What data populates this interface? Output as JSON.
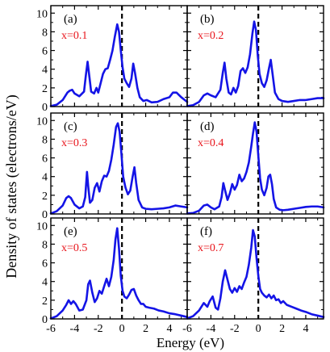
{
  "colors": {
    "curve": "#1414e6",
    "ylabel": "#7a1a55",
    "panel_label": "#e8141b",
    "fermi": "#000000"
  },
  "chart_data": {
    "type": "line",
    "xlabel": "Energy (eV)",
    "ylabel": "Density of states (electrons/eV)",
    "xlim": [
      -6,
      5.5
    ],
    "ylim": [
      0,
      10.8
    ],
    "x_ticks": [
      -6,
      -4,
      -2,
      0,
      2,
      4
    ],
    "x_tick_labels_left": [
      "-6",
      "-4",
      "-2",
      "0",
      "2",
      "4"
    ],
    "x_tick_labels_right": [
      "-6",
      "-4",
      "-2",
      "0",
      "2",
      "4"
    ],
    "y_ticks": [
      0,
      2,
      4,
      6,
      8,
      10
    ],
    "y_tick_labels": [
      "0",
      "2",
      "4",
      "6",
      "8",
      "10"
    ],
    "fermi_level": 0,
    "panels": [
      {
        "letter": "(a)",
        "label": "x=0.1",
        "x": [
          -6,
          -5.5,
          -5,
          -4.6,
          -4.4,
          -4.2,
          -4,
          -3.6,
          -3.2,
          -3.05,
          -2.9,
          -2.75,
          -2.6,
          -2.35,
          -2.15,
          -2,
          -1.8,
          -1.6,
          -1.4,
          -1.2,
          -1,
          -0.8,
          -0.6,
          -0.4,
          -0.25,
          -0.1,
          0.05,
          0.2,
          0.4,
          0.6,
          0.8,
          0.95,
          1.1,
          1.3,
          1.5,
          1.8,
          2.1,
          2.5,
          3,
          3.5,
          4,
          4.3,
          4.6,
          5,
          5.5
        ],
        "y": [
          0.05,
          0.2,
          0.7,
          1.5,
          1.7,
          1.8,
          1.4,
          1.1,
          1.6,
          3.3,
          4.8,
          3.2,
          1.6,
          1.4,
          2,
          1.5,
          2.5,
          3.5,
          4,
          4.1,
          5,
          6,
          7.5,
          8.8,
          8,
          6,
          4.2,
          3,
          2.5,
          2.1,
          3,
          4.6,
          3.6,
          2,
          1,
          0.6,
          0.7,
          0.45,
          0.5,
          0.8,
          1,
          1.5,
          1.5,
          1,
          0.5
        ]
      },
      {
        "letter": "(b)",
        "label": "x=0.2",
        "x": [
          -6,
          -5.5,
          -5,
          -4.6,
          -4.3,
          -4,
          -3.6,
          -3.2,
          -3,
          -2.85,
          -2.7,
          -2.5,
          -2.3,
          -2.1,
          -1.9,
          -1.7,
          -1.5,
          -1.3,
          -1.1,
          -0.9,
          -0.7,
          -0.5,
          -0.35,
          -0.2,
          -0.05,
          0.1,
          0.3,
          0.5,
          0.7,
          0.9,
          1.05,
          1.2,
          1.4,
          1.7,
          2,
          2.5,
          3,
          3.5,
          4,
          4.5,
          5,
          5.5
        ],
        "y": [
          0.05,
          0.15,
          0.5,
          1.2,
          1.4,
          1.2,
          1,
          1.8,
          3.6,
          4.7,
          3,
          1.5,
          1.3,
          2,
          1.5,
          2.2,
          3.8,
          4.1,
          3.6,
          4.2,
          5.6,
          7.8,
          9.1,
          8.2,
          5.5,
          3.5,
          2.5,
          2.1,
          2.8,
          4.1,
          5,
          3.5,
          1.5,
          0.8,
          0.6,
          0.5,
          0.6,
          0.7,
          0.7,
          0.8,
          0.9,
          0.9
        ]
      },
      {
        "letter": "(c)",
        "label": "x=0.3",
        "x": [
          -6,
          -5.5,
          -5,
          -4.7,
          -4.5,
          -4.3,
          -4,
          -3.6,
          -3.3,
          -3.1,
          -2.95,
          -2.85,
          -2.7,
          -2.5,
          -2.3,
          -2.1,
          -1.9,
          -1.7,
          -1.5,
          -1.3,
          -1.1,
          -0.9,
          -0.7,
          -0.5,
          -0.35,
          -0.2,
          -0.05,
          0.1,
          0.3,
          0.5,
          0.7,
          0.9,
          1.05,
          1.2,
          1.4,
          1.7,
          2,
          2.5,
          3,
          3.5,
          4,
          4.5,
          5,
          5.5
        ],
        "y": [
          0.05,
          0.3,
          0.9,
          1.7,
          1.9,
          1.7,
          1,
          0.6,
          0.8,
          1.8,
          4.5,
          3,
          1.2,
          1.5,
          2.8,
          3.3,
          2.4,
          3.5,
          4.1,
          4,
          4.6,
          5.8,
          7.4,
          9.3,
          9.7,
          8.8,
          6.5,
          4,
          2.8,
          2.1,
          2.5,
          4,
          5,
          3.3,
          1.5,
          0.7,
          0.55,
          0.5,
          0.55,
          0.6,
          0.7,
          0.9,
          0.8,
          0.7
        ]
      },
      {
        "letter": "(d)",
        "label": "x=0.4",
        "x": [
          -6,
          -5.5,
          -5,
          -4.6,
          -4.3,
          -4,
          -3.7,
          -3.3,
          -3.1,
          -2.95,
          -2.8,
          -2.6,
          -2.4,
          -2.2,
          -2,
          -1.8,
          -1.6,
          -1.4,
          -1.2,
          -1,
          -0.8,
          -0.6,
          -0.45,
          -0.3,
          -0.15,
          0,
          0.15,
          0.3,
          0.5,
          0.7,
          0.85,
          1,
          1.15,
          1.3,
          1.5,
          1.8,
          2.1,
          2.5,
          3,
          3.5,
          4,
          4.5,
          5,
          5.5
        ],
        "y": [
          0.05,
          0.1,
          0.35,
          0.9,
          1,
          0.7,
          0.5,
          0.8,
          1.8,
          3.3,
          2.5,
          1.5,
          2.2,
          3.2,
          2.6,
          3.1,
          4.2,
          3.5,
          3.8,
          4.5,
          5.5,
          7.2,
          8.6,
          9.8,
          8.8,
          6.2,
          3.8,
          2.6,
          2,
          2.8,
          4,
          4.2,
          3.2,
          1.6,
          0.7,
          0.45,
          0.4,
          0.45,
          0.55,
          0.65,
          0.75,
          0.8,
          0.8,
          0.7
        ]
      },
      {
        "letter": "(e)",
        "label": "x=0.5",
        "x": [
          -6,
          -5.5,
          -5,
          -4.7,
          -4.5,
          -4.3,
          -4.1,
          -3.9,
          -3.6,
          -3.3,
          -3,
          -2.85,
          -2.7,
          -2.5,
          -2.3,
          -2.1,
          -1.9,
          -1.7,
          -1.5,
          -1.3,
          -1.1,
          -0.9,
          -0.7,
          -0.55,
          -0.4,
          -0.25,
          -0.1,
          0.05,
          0.2,
          0.4,
          0.6,
          0.8,
          1,
          1.2,
          1.4,
          1.6,
          1.8,
          2,
          2.3,
          2.7,
          3.1,
          3.5,
          4,
          4.5,
          5,
          5.5
        ],
        "y": [
          0.05,
          0.3,
          0.9,
          1.5,
          2,
          1.6,
          1.9,
          1.6,
          0.9,
          1,
          2,
          3.7,
          4.1,
          2.8,
          1.8,
          2.2,
          3,
          2.7,
          3.5,
          4.3,
          3.5,
          4.5,
          6.3,
          8.5,
          9.7,
          7.5,
          4.6,
          3,
          2.4,
          2.2,
          2.6,
          3.1,
          3.2,
          2.5,
          2,
          1.6,
          1.6,
          1.3,
          1.2,
          1.1,
          0.9,
          0.8,
          0.6,
          0.5,
          0.35,
          0.2
        ]
      },
      {
        "letter": "(f)",
        "label": "x=0.7",
        "x": [
          -6,
          -5.5,
          -5,
          -4.6,
          -4.3,
          -4.1,
          -3.85,
          -3.6,
          -3.4,
          -3.2,
          -3,
          -2.8,
          -2.6,
          -2.4,
          -2.2,
          -2,
          -1.8,
          -1.6,
          -1.4,
          -1.2,
          -1,
          -0.8,
          -0.6,
          -0.45,
          -0.3,
          -0.15,
          0,
          0.15,
          0.3,
          0.5,
          0.7,
          0.9,
          1.1,
          1.3,
          1.5,
          1.7,
          1.9,
          2.1,
          2.4,
          2.8,
          3.2,
          3.6,
          4,
          4.5,
          5,
          5.5
        ],
        "y": [
          0.05,
          0.3,
          0.9,
          1.7,
          1.3,
          1.9,
          2.4,
          1.2,
          1,
          2.2,
          4,
          5.2,
          4.2,
          3.2,
          2.8,
          3.3,
          2.9,
          3.5,
          3.2,
          3.9,
          4.5,
          5.8,
          7.6,
          9.5,
          8.8,
          6.5,
          4.6,
          3.2,
          2.8,
          2.5,
          2.3,
          2.6,
          2.2,
          2.5,
          2,
          2.1,
          1.7,
          1.9,
          1.5,
          1.3,
          1.1,
          0.9,
          0.75,
          0.5,
          0.35,
          0.2
        ]
      }
    ]
  }
}
